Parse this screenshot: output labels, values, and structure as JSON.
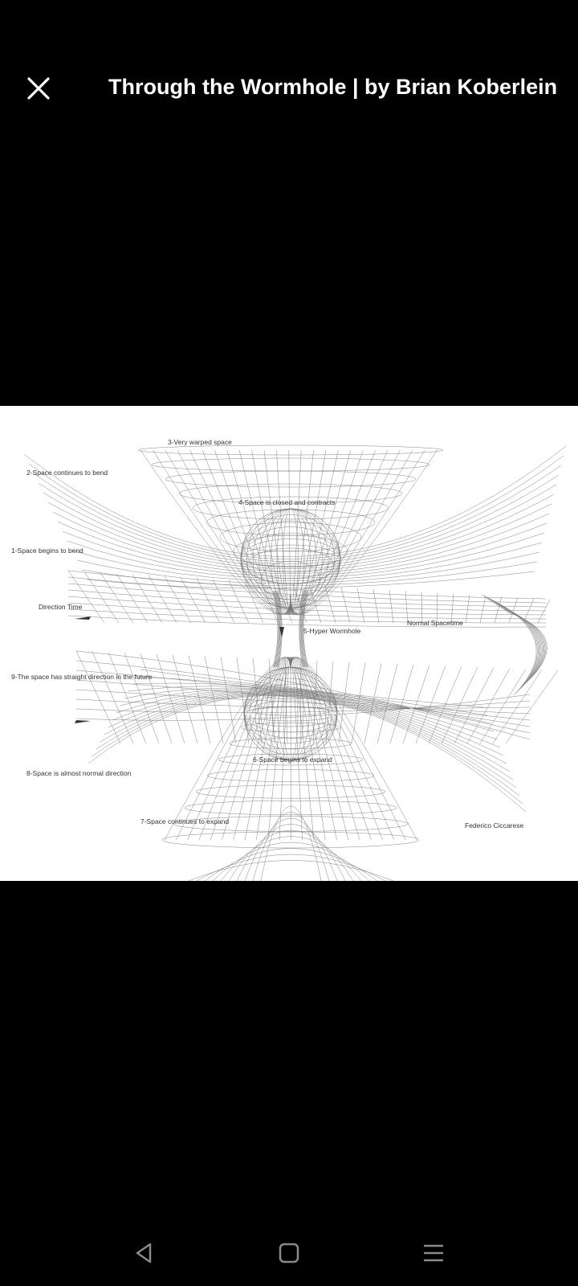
{
  "header": {
    "title": "Through the Wormhole | by Brian Koberlein",
    "close_icon": "close-icon"
  },
  "figure": {
    "labels": {
      "l3": "3-Very warped space",
      "l2": "2-Space continues to bend",
      "l4": "4-Space is closed and contracts",
      "l1": "1-Space begins to bend",
      "dir": "Direction Time",
      "l5": "5-Hyper Wormhole",
      "normal": "Normal Spacetime",
      "l9": "9-The space has straight direction in the future",
      "l6": "6-Space begins to expand",
      "l8": "8-Space is almost normal direction",
      "l7": "7-Space continues to expand",
      "credit": "Federico Ciccarese"
    }
  },
  "navbar": {
    "back_icon": "back-triangle-icon",
    "home_icon": "home-square-icon",
    "menu_icon": "menu-lines-icon"
  },
  "colors": {
    "background": "#000000",
    "image_bg": "#ffffff",
    "line": "#555555",
    "text": "#ffffff"
  }
}
